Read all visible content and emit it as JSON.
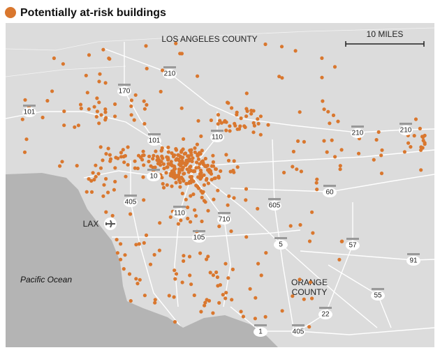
{
  "title": "Potentially at-risk buildings",
  "labels": {
    "county": "LOS ANGELES COUNTY",
    "scale": "10 MILES",
    "ocean": "Pacific Ocean",
    "orange": [
      "ORANGE",
      "COUNTY"
    ],
    "airport": "LAX"
  },
  "highways": [
    "101",
    "170",
    "210",
    "101",
    "110",
    "210",
    "210",
    "10",
    "405",
    "605",
    "60",
    "110",
    "710",
    "105",
    "5",
    "57",
    "91",
    "55",
    "22",
    "1",
    "405"
  ]
}
